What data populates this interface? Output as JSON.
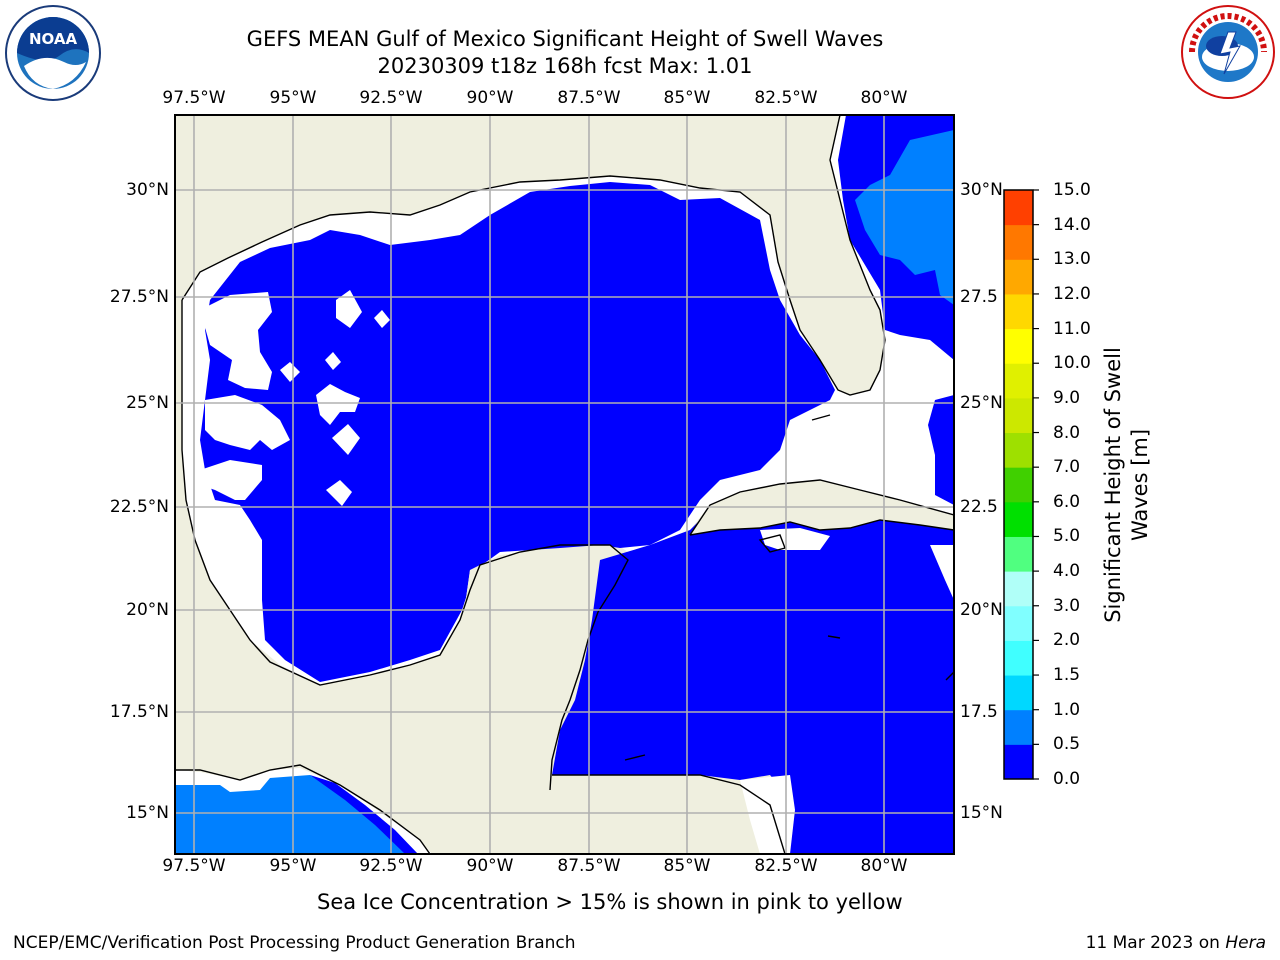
{
  "title_line1": "GEFS MEAN Gulf of Mexico Significant Height of Swell Waves",
  "title_line2": "20230309 t18z 168h fcst   Max: 1.01",
  "lon_ticks": [
    "97.5°W",
    "95°W",
    "92.5°W",
    "90°W",
    "87.5°W",
    "85°W",
    "82.5°W",
    "80°W"
  ],
  "lat_ticks_left": [
    "30°N",
    "27.5°N",
    "25°N",
    "22.5°N",
    "20°N",
    "17.5°N",
    "15°N"
  ],
  "lat_ticks_right": [
    "30°N",
    "27.5",
    "25°N",
    "22.5",
    "20°N",
    "17.5",
    "15°N"
  ],
  "colorbar": {
    "label_line1": "Significant Height of Swell",
    "label_line2": "Waves [m]",
    "ticks": [
      "0.0",
      "0.5",
      "1.0",
      "1.5",
      "2.0",
      "3.0",
      "4.0",
      "5.0",
      "6.0",
      "7.0",
      "8.0",
      "9.0",
      "10.0",
      "11.0",
      "12.0",
      "13.0",
      "14.0",
      "15.0"
    ],
    "colors": [
      "#0000ff",
      "#0080ff",
      "#00d8ff",
      "#40ffff",
      "#80ffff",
      "#b0fff8",
      "#50ff80",
      "#00e000",
      "#40d000",
      "#9ee000",
      "#cce800",
      "#e0f000",
      "#ffff00",
      "#ffd800",
      "#ffa800",
      "#ff7800",
      "#ff4000",
      "#ff1000"
    ]
  },
  "note": "Sea Ice Concentration > 15% is shown in pink to yellow",
  "footer_left": "NCEP/EMC/Verification Post Processing Product Generation Branch",
  "footer_date": "11 Mar 2023 on ",
  "footer_host": "Hera",
  "logos": {
    "left": "noaa-logo",
    "right": "nws-logo"
  },
  "colors": {
    "land": "#efefdf",
    "ocean_low": "#0000ff",
    "ocean_mid": "#0080ff",
    "no_data": "#ffffff",
    "grid": "#b0b0b0"
  }
}
